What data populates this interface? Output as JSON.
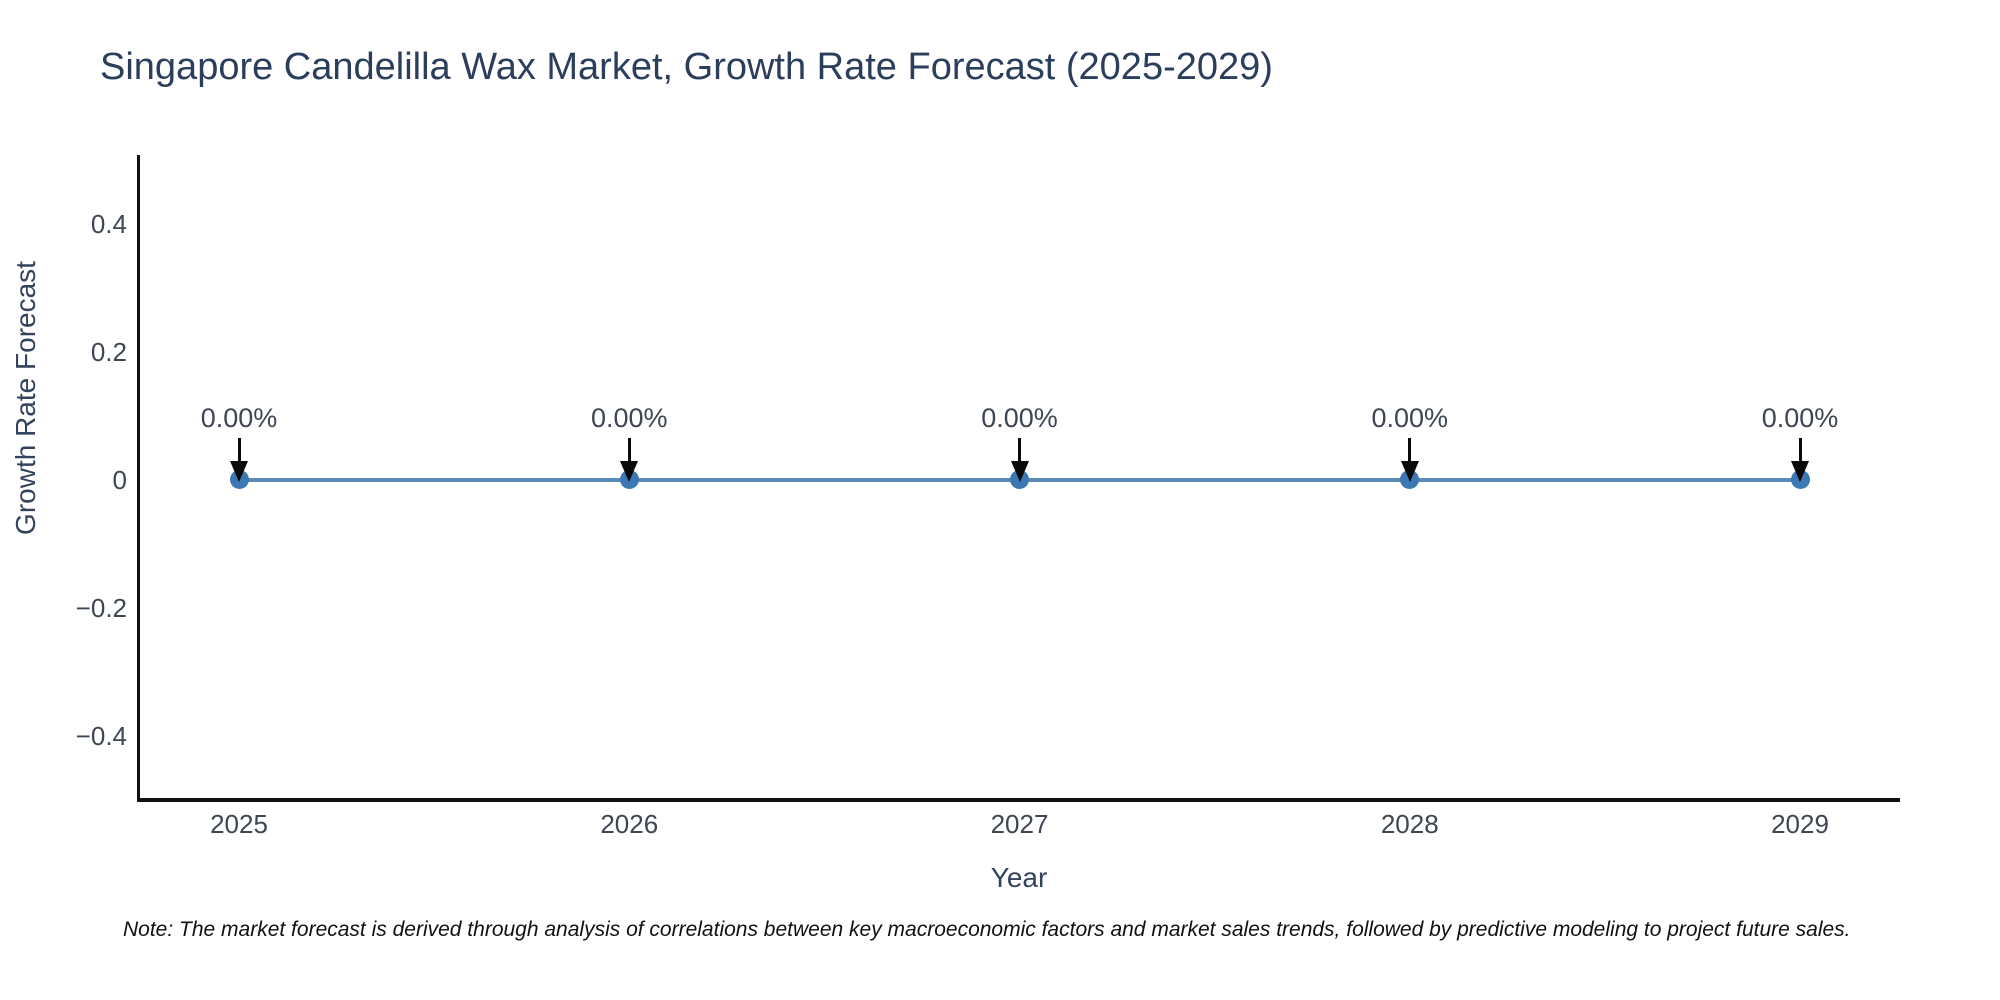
{
  "title": "Singapore Candelilla Wax Market, Growth Rate Forecast (2025-2029)",
  "note": "Note: The market forecast is derived through analysis of correlations between key macroeconomic factors and market sales trends, followed by predictive modeling to project future sales.",
  "chart_data": {
    "type": "line",
    "title": "Singapore Candelilla Wax Market, Growth Rate Forecast (2025-2029)",
    "xlabel": "Year",
    "ylabel": "Growth Rate Forecast",
    "categories": [
      "2025",
      "2026",
      "2027",
      "2028",
      "2029"
    ],
    "x": [
      2025,
      2026,
      2027,
      2028,
      2029
    ],
    "values": [
      0,
      0,
      0,
      0,
      0
    ],
    "point_labels": [
      "0.00%",
      "0.00%",
      "0.00%",
      "0.00%",
      "0.00%"
    ],
    "yticks": [
      {
        "value": 0.4,
        "label": "0.4"
      },
      {
        "value": 0.2,
        "label": "0.2"
      },
      {
        "value": 0,
        "label": "0"
      },
      {
        "value": -0.2,
        "label": "−0.2"
      },
      {
        "value": -0.4,
        "label": "−0.4"
      }
    ],
    "ylim": [
      -0.5,
      0.5
    ],
    "grid": false,
    "legend": "none",
    "annotation_arrows": true,
    "colors": {
      "line": "#5a8cb8",
      "marker": "#3c78b4",
      "arrow": "#0a0a0a",
      "spine": "#111111",
      "title_text": "#2b3e5c",
      "tick_text": "#3e4651",
      "axis_label_text": "#33435c",
      "note_text": "#111111",
      "background": "#ffffff"
    }
  }
}
